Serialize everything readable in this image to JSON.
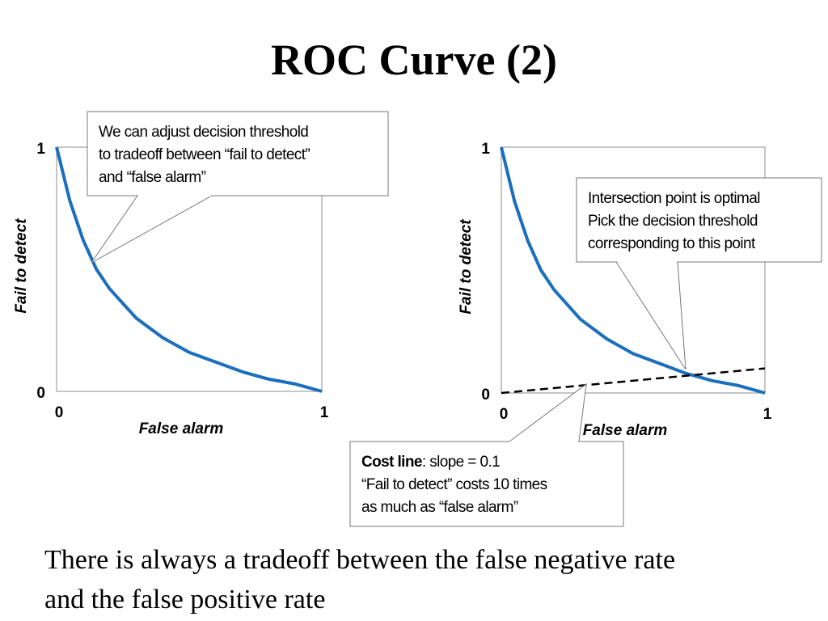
{
  "title": "ROC Curve (2)",
  "footer_lines": [
    "There is always a tradeoff between the false negative rate",
    "and the false positive rate"
  ],
  "chart_data": [
    {
      "type": "line",
      "x_label": "False alarm",
      "y_label": "Fail to detect",
      "xlim": [
        0,
        1
      ],
      "ylim": [
        0,
        1
      ],
      "xticks": [
        0,
        1
      ],
      "yticks": [
        0,
        1
      ],
      "series": [
        {
          "color": "#1c6fbd",
          "x": [
            0,
            0.05,
            0.1,
            0.15,
            0.2,
            0.3,
            0.4,
            0.5,
            0.6,
            0.7,
            0.8,
            0.9,
            1
          ],
          "values": [
            1,
            0.78,
            0.62,
            0.5,
            0.42,
            0.3,
            0.22,
            0.16,
            0.12,
            0.08,
            0.05,
            0.03,
            0
          ]
        }
      ],
      "annotations": [
        {
          "lines": [
            "We can adjust decision threshold",
            "to tradeoff between “fail to detect”",
            "and “false alarm”"
          ]
        }
      ]
    },
    {
      "type": "line",
      "x_label": "False alarm",
      "y_label": "Fail to detect",
      "xlim": [
        0,
        1
      ],
      "ylim": [
        0,
        1
      ],
      "xticks": [
        0,
        1
      ],
      "yticks": [
        0,
        1
      ],
      "series": [
        {
          "color": "#1c6fbd",
          "x": [
            0,
            0.05,
            0.1,
            0.15,
            0.2,
            0.3,
            0.4,
            0.5,
            0.6,
            0.7,
            0.8,
            0.9,
            1
          ],
          "values": [
            1,
            0.78,
            0.62,
            0.5,
            0.42,
            0.3,
            0.22,
            0.16,
            0.12,
            0.08,
            0.05,
            0.03,
            0
          ]
        },
        {
          "color": "#000000",
          "dashed": true,
          "x": [
            0,
            1
          ],
          "values": [
            0,
            0.1
          ]
        }
      ],
      "annotations": [
        {
          "lines": [
            "Intersection point is optimal",
            "Pick the decision threshold",
            "corresponding to this point"
          ]
        },
        {
          "label": "Cost line",
          "lines": [
            ": slope = 0.1",
            "“Fail to detect” costs 10 times",
            "as much as “false alarm”"
          ]
        }
      ]
    }
  ]
}
